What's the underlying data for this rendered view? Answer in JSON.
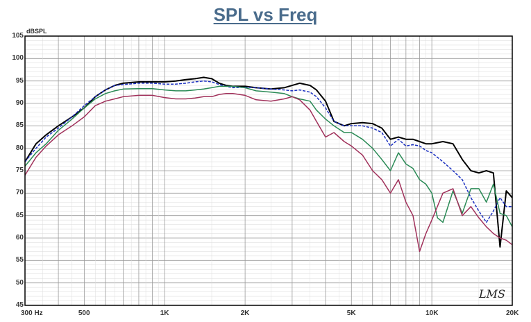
{
  "chart_data": {
    "type": "line",
    "title": "SPL vs Freq",
    "ylabel": "dBSPL",
    "xlabel": "",
    "x_scale": "log",
    "xlim": [
      300,
      20000
    ],
    "ylim": [
      45,
      105
    ],
    "grid": true,
    "y_ticks": [
      45,
      50,
      55,
      60,
      65,
      70,
      75,
      80,
      85,
      90,
      95,
      100,
      105
    ],
    "x_ticks": [
      {
        "value": 300,
        "label": "300 Hz"
      },
      {
        "value": 500,
        "label": "500"
      },
      {
        "value": 1000,
        "label": "1K"
      },
      {
        "value": 2000,
        "label": "2K"
      },
      {
        "value": 5000,
        "label": "5K"
      },
      {
        "value": 10000,
        "label": "10K"
      },
      {
        "value": 20000,
        "label": "20K"
      }
    ],
    "watermark": "LMS",
    "series": [
      {
        "color": "#000000",
        "width": 2,
        "x": [
          300,
          330,
          360,
          400,
          450,
          500,
          550,
          600,
          650,
          700,
          800,
          900,
          1000,
          1100,
          1200,
          1300,
          1400,
          1500,
          1600,
          1700,
          1800,
          2000,
          2200,
          2500,
          2800,
          3000,
          3200,
          3500,
          3700,
          4000,
          4300,
          4700,
          5000,
          5500,
          6000,
          6500,
          7000,
          7500,
          8000,
          8500,
          9000,
          9500,
          10000,
          11000,
          12000,
          13000,
          14000,
          15000,
          16000,
          17000,
          18000,
          19000,
          20000
        ],
        "y": [
          77,
          81,
          83,
          85,
          87,
          89,
          91.5,
          93,
          94,
          94.5,
          94.8,
          94.8,
          94.8,
          95,
          95.3,
          95.5,
          95.8,
          95.5,
          94.5,
          94,
          93.8,
          93.8,
          93.5,
          93.2,
          93.5,
          94,
          94.5,
          94,
          93,
          90.5,
          86,
          85,
          85.5,
          85.7,
          85.5,
          84.5,
          82,
          82.5,
          82,
          82,
          81.5,
          81,
          81,
          81.5,
          81,
          77.5,
          75,
          74.5,
          75,
          74.5,
          58,
          70.5,
          69
        ]
      },
      {
        "color": "#1a2fc0",
        "width": 1.5,
        "dash": "4,2",
        "x": [
          300,
          330,
          360,
          400,
          450,
          500,
          550,
          600,
          650,
          700,
          800,
          900,
          1000,
          1100,
          1200,
          1300,
          1400,
          1500,
          1600,
          1700,
          1800,
          2000,
          2200,
          2500,
          2800,
          3000,
          3200,
          3500,
          3700,
          4000,
          4300,
          4700,
          5000,
          5500,
          6000,
          6500,
          7000,
          7500,
          8000,
          8500,
          9000,
          9500,
          10000,
          11000,
          12000,
          13000,
          14000,
          15000,
          16000,
          17000,
          18000,
          19000,
          20000
        ],
        "y": [
          77,
          80,
          82.5,
          84.5,
          87,
          89.5,
          91.5,
          93,
          94,
          94.2,
          94.5,
          94.5,
          94.3,
          94.3,
          94.5,
          94.8,
          95,
          94.8,
          94.2,
          93.8,
          93.5,
          93.6,
          93.5,
          93.2,
          93,
          92.8,
          93,
          92.5,
          91.5,
          89,
          86,
          85,
          85,
          85,
          84.5,
          83.5,
          80.5,
          82,
          80.5,
          80.8,
          80.5,
          79.5,
          79,
          77,
          75,
          73,
          69,
          66,
          63.5,
          66,
          69,
          67,
          67
        ]
      },
      {
        "color": "#2a8a55",
        "width": 1.5,
        "x": [
          300,
          330,
          360,
          400,
          450,
          500,
          550,
          600,
          650,
          700,
          800,
          900,
          1000,
          1100,
          1200,
          1300,
          1400,
          1500,
          1600,
          1700,
          1800,
          2000,
          2200,
          2500,
          2800,
          3000,
          3200,
          3500,
          3700,
          4000,
          4300,
          4700,
          5000,
          5500,
          6000,
          6500,
          7000,
          7500,
          8000,
          8500,
          9000,
          9500,
          10000,
          10500,
          11000,
          12000,
          13000,
          14000,
          15000,
          16000,
          17000,
          18000,
          19000,
          20000
        ],
        "y": [
          76,
          79,
          81,
          84,
          86.5,
          89,
          91,
          92.2,
          92.8,
          93.2,
          93.3,
          93.3,
          93,
          92.8,
          92.8,
          93,
          93.2,
          93.5,
          93.8,
          93.8,
          93.8,
          93.5,
          92.8,
          92.5,
          92.2,
          91.5,
          91,
          90.5,
          88.5,
          86.5,
          85,
          83.5,
          83.5,
          82,
          80,
          77.5,
          75,
          79,
          76.5,
          75.5,
          73,
          72,
          70,
          64.5,
          63.5,
          70.5,
          65.5,
          71,
          71,
          68,
          72,
          65.5,
          65,
          62.5
        ]
      },
      {
        "color": "#a0305a",
        "width": 1.5,
        "x": [
          300,
          330,
          360,
          400,
          450,
          500,
          550,
          600,
          650,
          700,
          800,
          900,
          1000,
          1100,
          1200,
          1300,
          1400,
          1500,
          1600,
          1700,
          1800,
          2000,
          2200,
          2500,
          2800,
          3000,
          3200,
          3500,
          3700,
          4000,
          4300,
          4700,
          5000,
          5500,
          6000,
          6500,
          7000,
          7500,
          8000,
          8500,
          9000,
          9500,
          10000,
          11000,
          12000,
          13000,
          14000,
          15000,
          16000,
          17000,
          18000,
          19000,
          20000
        ],
        "y": [
          74,
          78,
          80.5,
          83,
          85,
          87,
          89.5,
          90.5,
          91,
          91.5,
          91.8,
          91.8,
          91.3,
          91,
          91,
          91.2,
          91.5,
          91.5,
          92,
          92.2,
          92.2,
          91.8,
          90.8,
          90.5,
          91,
          91.5,
          90.8,
          88.5,
          86,
          82.5,
          83.5,
          81.5,
          80.5,
          78.5,
          75,
          73,
          70,
          73,
          68,
          65,
          57,
          61,
          64,
          70,
          71,
          65,
          67,
          64.5,
          62.5,
          61,
          60,
          59.5,
          58.5
        ]
      }
    ]
  }
}
